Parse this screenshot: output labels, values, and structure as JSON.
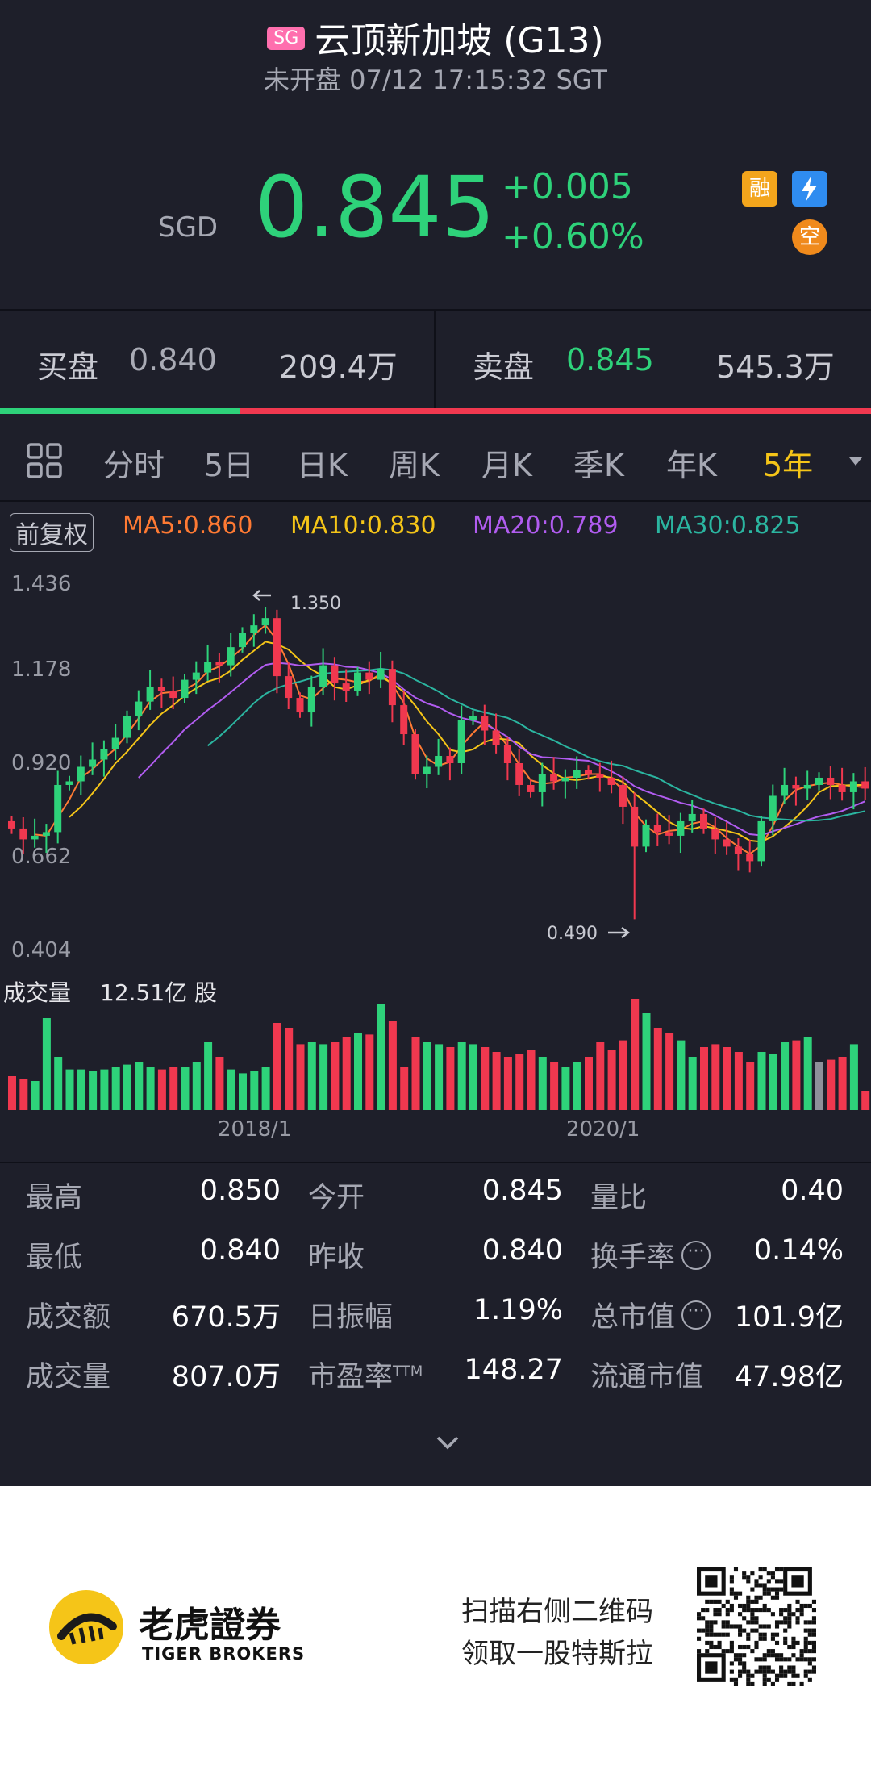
{
  "header": {
    "market_badge": "SG",
    "title": "云顶新加坡 (G13)",
    "subtitle": "未开盘 07/12 17:15:32 SGT"
  },
  "price": {
    "currency": "SGD",
    "last": "0.845",
    "change": "+0.005",
    "change_pct": "+0.60%",
    "badges": [
      "融",
      "空"
    ],
    "up_color": "#2ed27a",
    "down_color": "#f0384f"
  },
  "orderbook": {
    "bid_label": "买盘",
    "bid_price": "0.840",
    "bid_volume": "209.4万",
    "ask_label": "卖盘",
    "ask_price": "0.845",
    "ask_volume": "545.3万",
    "bid_ratio": 0.275
  },
  "tabs": {
    "items": [
      "分时",
      "5日",
      "日K",
      "周K",
      "月K",
      "季K",
      "年K",
      "5年"
    ],
    "active": "5年"
  },
  "indicators": {
    "adjust_label": "前复权",
    "ma5": "MA5:0.860",
    "ma10": "MA10:0.830",
    "ma20": "MA20:0.789",
    "ma30": "MA30:0.825",
    "colors": {
      "ma5": "#ff7a33",
      "ma10": "#f5c518",
      "ma20": "#b15cf0",
      "ma30": "#2bb5a0"
    }
  },
  "chart_data": {
    "type": "candlestick",
    "y_ticks": [
      "1.436",
      "1.178",
      "0.920",
      "0.662",
      "0.404"
    ],
    "ylim": [
      0.404,
      1.436
    ],
    "max_annotation": "1.350",
    "min_annotation": "0.490",
    "x_ticks": [
      "2018/1",
      "2020/1"
    ],
    "volume_label": "成交量",
    "volume_value": "12.51亿 股",
    "close": [
      0.74,
      0.71,
      0.72,
      0.73,
      0.86,
      0.87,
      0.91,
      0.93,
      0.96,
      0.99,
      1.05,
      1.09,
      1.13,
      1.12,
      1.1,
      1.15,
      1.17,
      1.2,
      1.19,
      1.24,
      1.28,
      1.3,
      1.32,
      1.16,
      1.1,
      1.06,
      1.13,
      1.19,
      1.14,
      1.12,
      1.17,
      1.15,
      1.18,
      1.08,
      1.0,
      0.89,
      0.91,
      0.94,
      0.92,
      1.04,
      1.05,
      1.01,
      0.97,
      0.92,
      0.86,
      0.84,
      0.89,
      0.87,
      0.88,
      0.9,
      0.89,
      0.88,
      0.86,
      0.8,
      0.69,
      0.75,
      0.73,
      0.72,
      0.76,
      0.78,
      0.74,
      0.71,
      0.69,
      0.67,
      0.65,
      0.76,
      0.83,
      0.86,
      0.85,
      0.86,
      0.88,
      0.86,
      0.84,
      0.87,
      0.85
    ],
    "volume": [
      0.35,
      0.32,
      0.3,
      0.95,
      0.55,
      0.42,
      0.42,
      0.4,
      0.42,
      0.45,
      0.47,
      0.5,
      0.45,
      0.42,
      0.45,
      0.45,
      0.5,
      0.7,
      0.55,
      0.42,
      0.38,
      0.4,
      0.45,
      0.9,
      0.85,
      0.68,
      0.7,
      0.68,
      0.7,
      0.75,
      0.8,
      0.78,
      1.1,
      0.92,
      0.45,
      0.75,
      0.7,
      0.68,
      0.65,
      0.7,
      0.68,
      0.65,
      0.6,
      0.55,
      0.58,
      0.62,
      0.55,
      0.5,
      0.45,
      0.5,
      0.55,
      0.7,
      0.62,
      0.72,
      1.15,
      1.0,
      0.85,
      0.8,
      0.72,
      0.55,
      0.65,
      0.68,
      0.65,
      0.6,
      0.5,
      0.6,
      0.58,
      0.7,
      0.72,
      0.75,
      0.5,
      0.52,
      0.55,
      0.68,
      0.2
    ]
  },
  "stats": {
    "col1": [
      [
        "最高",
        "0.850"
      ],
      [
        "最低",
        "0.840"
      ],
      [
        "成交额",
        "670.5万"
      ],
      [
        "成交量",
        "807.0万"
      ]
    ],
    "col2": [
      [
        "今开",
        "0.845"
      ],
      [
        "昨收",
        "0.840"
      ],
      [
        "日振幅",
        "1.19%"
      ],
      [
        "市盈率",
        "148.27"
      ]
    ],
    "col3": [
      [
        "量比",
        "0.40"
      ],
      [
        "换手率",
        "0.14%"
      ],
      [
        "总市值",
        "101.9亿"
      ],
      [
        "流通市值",
        "47.98亿"
      ]
    ],
    "pe_superscript": "TTM"
  },
  "footer": {
    "brand_cn": "老虎證券",
    "brand_en": "TIGER BROKERS",
    "promo_line1": "扫描右侧二维码",
    "promo_line2": "领取一股特斯拉"
  }
}
